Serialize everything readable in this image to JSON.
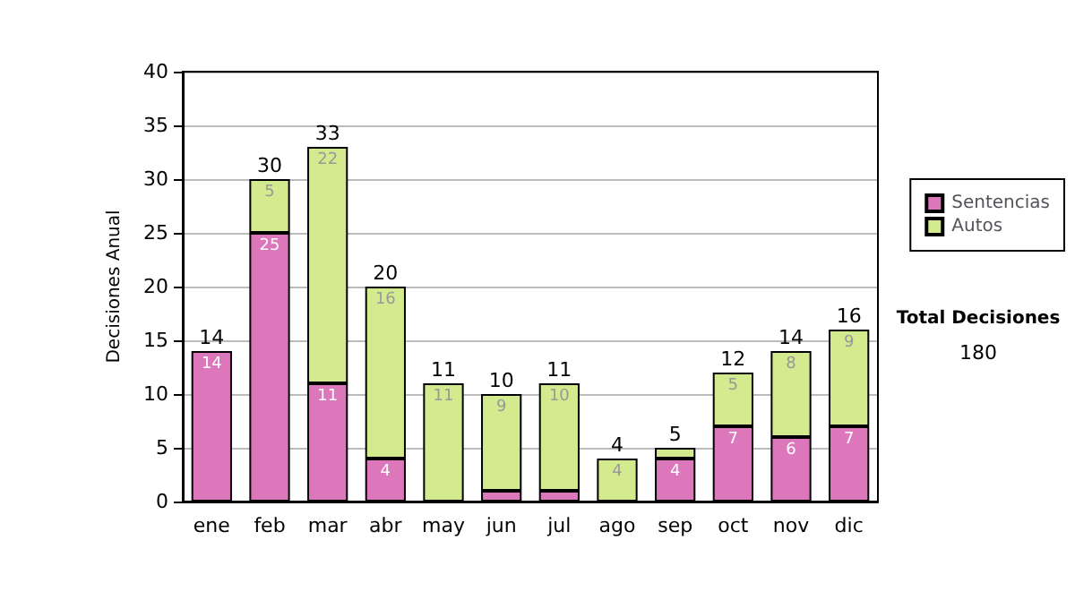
{
  "chart_data": {
    "type": "bar",
    "stacked": true,
    "ylabel": "Decisiones Anual",
    "categories": [
      "ene",
      "feb",
      "mar",
      "abr",
      "may",
      "jun",
      "jul",
      "ago",
      "sep",
      "oct",
      "nov",
      "dic"
    ],
    "series": [
      {
        "name": "Sentencias",
        "color": "#dd77bb",
        "values": [
          14,
          25,
          11,
          4,
          0,
          1,
          1,
          0,
          4,
          7,
          6,
          7
        ],
        "value_labels": [
          "14",
          "25",
          "11",
          "4",
          null,
          null,
          null,
          null,
          "4",
          "7",
          "6",
          "7"
        ]
      },
      {
        "name": "Autos",
        "color": "#d4ea8e",
        "values": [
          0,
          5,
          22,
          16,
          11,
          9,
          10,
          4,
          1,
          5,
          8,
          9
        ],
        "value_labels": [
          null,
          "5",
          "22",
          "16",
          "11",
          "9",
          "10",
          "4",
          null,
          "5",
          "8",
          "9"
        ]
      }
    ],
    "totals": [
      "14",
      "30",
      "33",
      "20",
      "11",
      "10",
      "11",
      "4",
      "5",
      "12",
      "14",
      "16"
    ],
    "ylim": [
      0,
      40
    ],
    "yticks": [
      0,
      5,
      10,
      15,
      20,
      25,
      30,
      35,
      40
    ],
    "grid": "y",
    "legend": "right",
    "annotations": [
      "Total Decisiones",
      "180"
    ]
  }
}
